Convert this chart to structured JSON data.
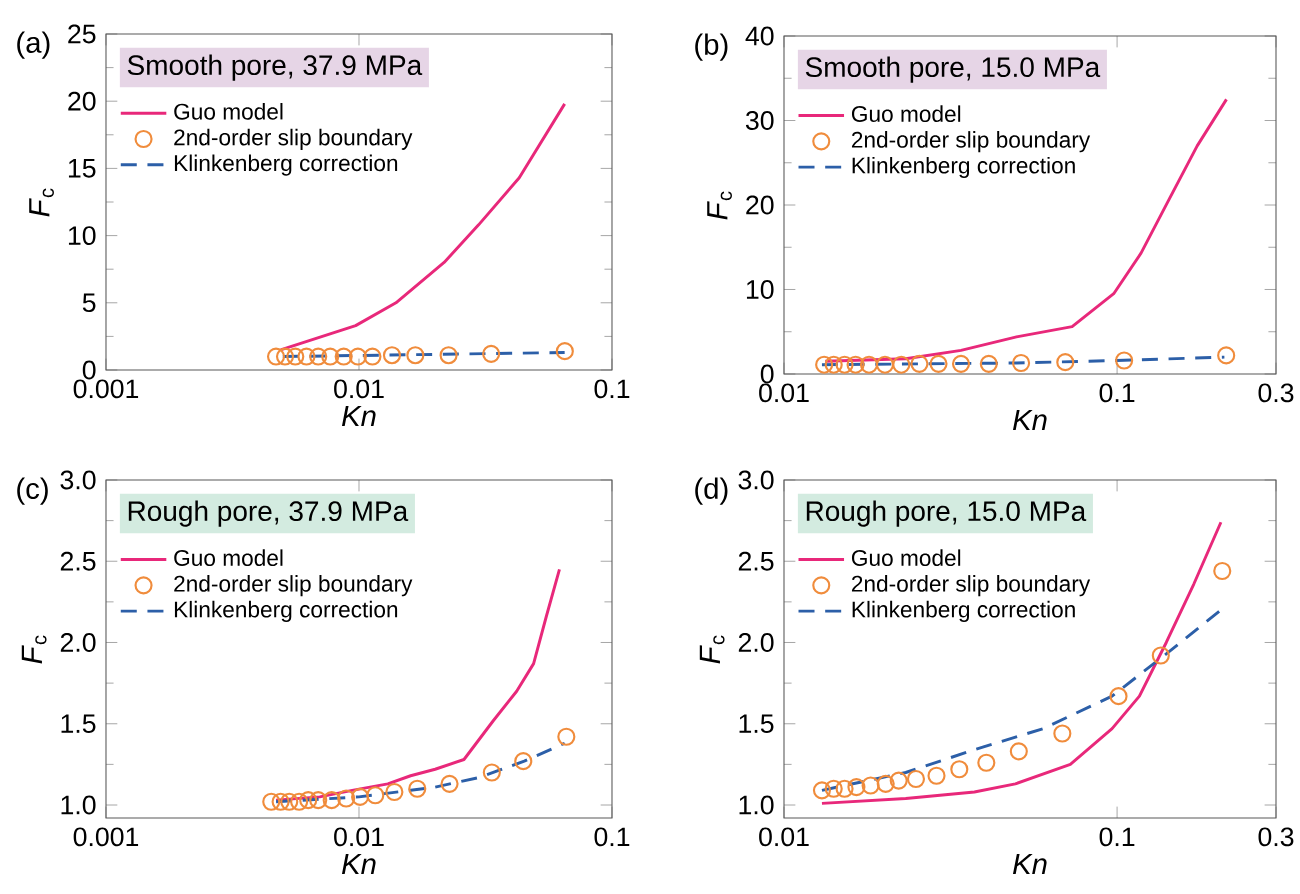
{
  "chart_data": [
    {
      "type": "scatter",
      "title": "Smooth pore, 37.9 MPa",
      "annotations": [
        "(a)"
      ],
      "xlabel": "Kn",
      "ylabel": "*F*$_{c}$",
      "log": "x",
      "legend": "top left",
      "xlim": [
        0.001,
        0.1
      ],
      "xticks": [
        0.001,
        0.01,
        0.1
      ],
      "ylim": [
        0,
        25
      ],
      "yticks": [
        0,
        5,
        10,
        15,
        20,
        25
      ],
      "series": [
        {
          "name": "Guo model",
          "type": "line",
          "color": "#e8287a",
          "line_style": "solid",
          "marker": "none",
          "x": [
            0.0049,
            0.0097,
            0.014,
            0.0217,
            0.0297,
            0.043,
            0.065
          ],
          "values": [
            1.5,
            3.3,
            5,
            8,
            10.8,
            14.3,
            19.8
          ]
        },
        {
          "name": "2nd-order slip boundary",
          "color": "#f08c3c",
          "marker": "circle",
          "x": [
            0.0047,
            0.0051,
            0.0056,
            0.0062,
            0.0069,
            0.0077,
            0.0087,
            0.0099,
            0.0113,
            0.0135,
            0.0167,
            0.0226,
            0.0333,
            0.0651
          ],
          "values": [
            1.0,
            1.0,
            1.0,
            1.0,
            1.0,
            1.0,
            1.0,
            1.0,
            1.0,
            1.1,
            1.1,
            1.1,
            1.2,
            1.4
          ]
        },
        {
          "name": "Klinkenberg correction",
          "type": "line",
          "color": "#2c5fa8",
          "line_style": "dashed",
          "marker": "none",
          "x": [
            0.005,
            0.065
          ],
          "values": [
            1.0,
            1.3
          ]
        }
      ]
    },
    {
      "type": "scatter",
      "title": "Smooth pore, 15.0 MPa",
      "annotations": [
        "(b)"
      ],
      "xlabel": "Kn",
      "ylabel": "*F*$_{c}$",
      "log": "x",
      "legend": "top left",
      "xlim": [
        0.01,
        0.3
      ],
      "xticks": [
        0.01,
        0.1,
        0.3
      ],
      "ylim": [
        0,
        40
      ],
      "yticks": [
        0,
        10,
        20,
        30,
        40
      ],
      "series": [
        {
          "name": "Guo model",
          "type": "line",
          "color": "#e8287a",
          "line_style": "solid",
          "marker": "none",
          "x": [
            0.0133,
            0.0232,
            0.034,
            0.0499,
            0.0733,
            0.0977,
            0.118,
            0.143,
            0.174,
            0.213
          ],
          "values": [
            1.5,
            1.8,
            2.8,
            4.4,
            5.6,
            9.5,
            14.3,
            20.6,
            27,
            32.5
          ]
        },
        {
          "name": "2nd-order slip boundary",
          "color": "#f08c3c",
          "marker": "circle",
          "x": [
            0.0132,
            0.0141,
            0.0152,
            0.0164,
            0.018,
            0.0201,
            0.0225,
            0.0255,
            0.0291,
            0.034,
            0.0412,
            0.0515,
            0.0699,
            0.105,
            0.2126
          ],
          "values": [
            1.1,
            1.1,
            1.1,
            1.1,
            1.1,
            1.1,
            1.1,
            1.2,
            1.2,
            1.2,
            1.2,
            1.3,
            1.4,
            1.6,
            2.2
          ]
        },
        {
          "name": "Klinkenberg correction",
          "type": "line",
          "color": "#2c5fa8",
          "line_style": "dashed",
          "marker": "none",
          "x": [
            0.013,
            0.05,
            0.1,
            0.21
          ],
          "values": [
            1.1,
            1.3,
            1.6,
            2.0
          ]
        }
      ]
    },
    {
      "type": "scatter",
      "title": "Rough pore, 37.9 MPa",
      "annotations": [
        "(c)"
      ],
      "xlabel": "Kn",
      "ylabel": "*F*$_{c}$",
      "log": "x",
      "legend": "top left",
      "xlim": [
        0.001,
        0.1
      ],
      "xticks": [
        0.001,
        0.01,
        0.1
      ],
      "ylim": [
        0.92,
        3.0
      ],
      "yticks": [
        {
          "value": 1,
          "label": "1.0"
        },
        1.5,
        {
          "value": 2,
          "label": "2.0"
        },
        2.5,
        {
          "value": 3,
          "label": "3.0"
        }
      ],
      "series": [
        {
          "name": "Guo model",
          "type": "line",
          "color": "#e8287a",
          "line_style": "solid",
          "marker": "none",
          "x": [
            0.0047,
            0.007,
            0.0094,
            0.013,
            0.016,
            0.02,
            0.026,
            0.034,
            0.042,
            0.049,
            0.055,
            0.062
          ],
          "values": [
            1.03,
            1.05,
            1.09,
            1.13,
            1.18,
            1.22,
            1.28,
            1.52,
            1.7,
            1.87,
            2.16,
            2.45
          ]
        },
        {
          "name": "2nd-order slip boundary",
          "color": "#f08c3c",
          "marker": "circle",
          "x": [
            0.0045,
            0.0049,
            0.0053,
            0.0058,
            0.0063,
            0.0069,
            0.0078,
            0.0089,
            0.0101,
            0.0116,
            0.0138,
            0.017,
            0.0228,
            0.0335,
            0.0446,
            0.066
          ],
          "values": [
            1.02,
            1.02,
            1.02,
            1.02,
            1.03,
            1.03,
            1.03,
            1.04,
            1.05,
            1.06,
            1.08,
            1.1,
            1.13,
            1.2,
            1.27,
            1.42
          ]
        },
        {
          "name": "Klinkenberg correction",
          "type": "line",
          "color": "#2c5fa8",
          "line_style": "dashed",
          "marker": "none",
          "x": [
            0.0047,
            0.01,
            0.02,
            0.03,
            0.045,
            0.065
          ],
          "values": [
            1.02,
            1.05,
            1.11,
            1.17,
            1.27,
            1.38
          ]
        }
      ]
    },
    {
      "type": "scatter",
      "title": "Rough pore, 15.0 MPa",
      "annotations": [
        "(d)"
      ],
      "xlabel": "Kn",
      "ylabel": "*F*$_{c}$",
      "log": "x",
      "legend": "top left",
      "xlim": [
        0.01,
        0.3
      ],
      "xticks": [
        0.01,
        0.1,
        0.3
      ],
      "ylim": [
        0.92,
        3.0
      ],
      "yticks": [
        {
          "value": 1,
          "label": "1.0"
        },
        1.5,
        {
          "value": 2,
          "label": "2.0"
        },
        2.5,
        {
          "value": 3,
          "label": "3.0"
        }
      ],
      "series": [
        {
          "name": "Guo model",
          "type": "line",
          "color": "#e8287a",
          "line_style": "solid",
          "marker": "none",
          "x": [
            0.013,
            0.0232,
            0.0373,
            0.0495,
            0.0724,
            0.0966,
            0.1167,
            0.1405,
            0.17,
            0.205
          ],
          "values": [
            1.01,
            1.04,
            1.08,
            1.13,
            1.25,
            1.47,
            1.67,
            2.0,
            2.36,
            2.74
          ]
        },
        {
          "name": "2nd-order slip boundary",
          "color": "#f08c3c",
          "marker": "circle",
          "x": [
            0.013,
            0.0141,
            0.0152,
            0.0165,
            0.0182,
            0.0202,
            0.0221,
            0.0249,
            0.0287,
            0.0336,
            0.0405,
            0.0507,
            0.0685,
            0.101,
            0.1353,
            0.2069
          ],
          "values": [
            1.09,
            1.1,
            1.1,
            1.11,
            1.12,
            1.13,
            1.15,
            1.16,
            1.18,
            1.22,
            1.26,
            1.33,
            1.44,
            1.67,
            1.92,
            2.44
          ]
        },
        {
          "name": "Klinkenberg correction",
          "type": "line",
          "color": "#2c5fa8",
          "line_style": "dashed",
          "marker": "none",
          "x": [
            0.013,
            0.0232,
            0.0373,
            0.06,
            0.0966,
            0.1405,
            0.205
          ],
          "values": [
            1.09,
            1.2,
            1.34,
            1.47,
            1.67,
            1.93,
            2.2
          ]
        }
      ]
    }
  ]
}
